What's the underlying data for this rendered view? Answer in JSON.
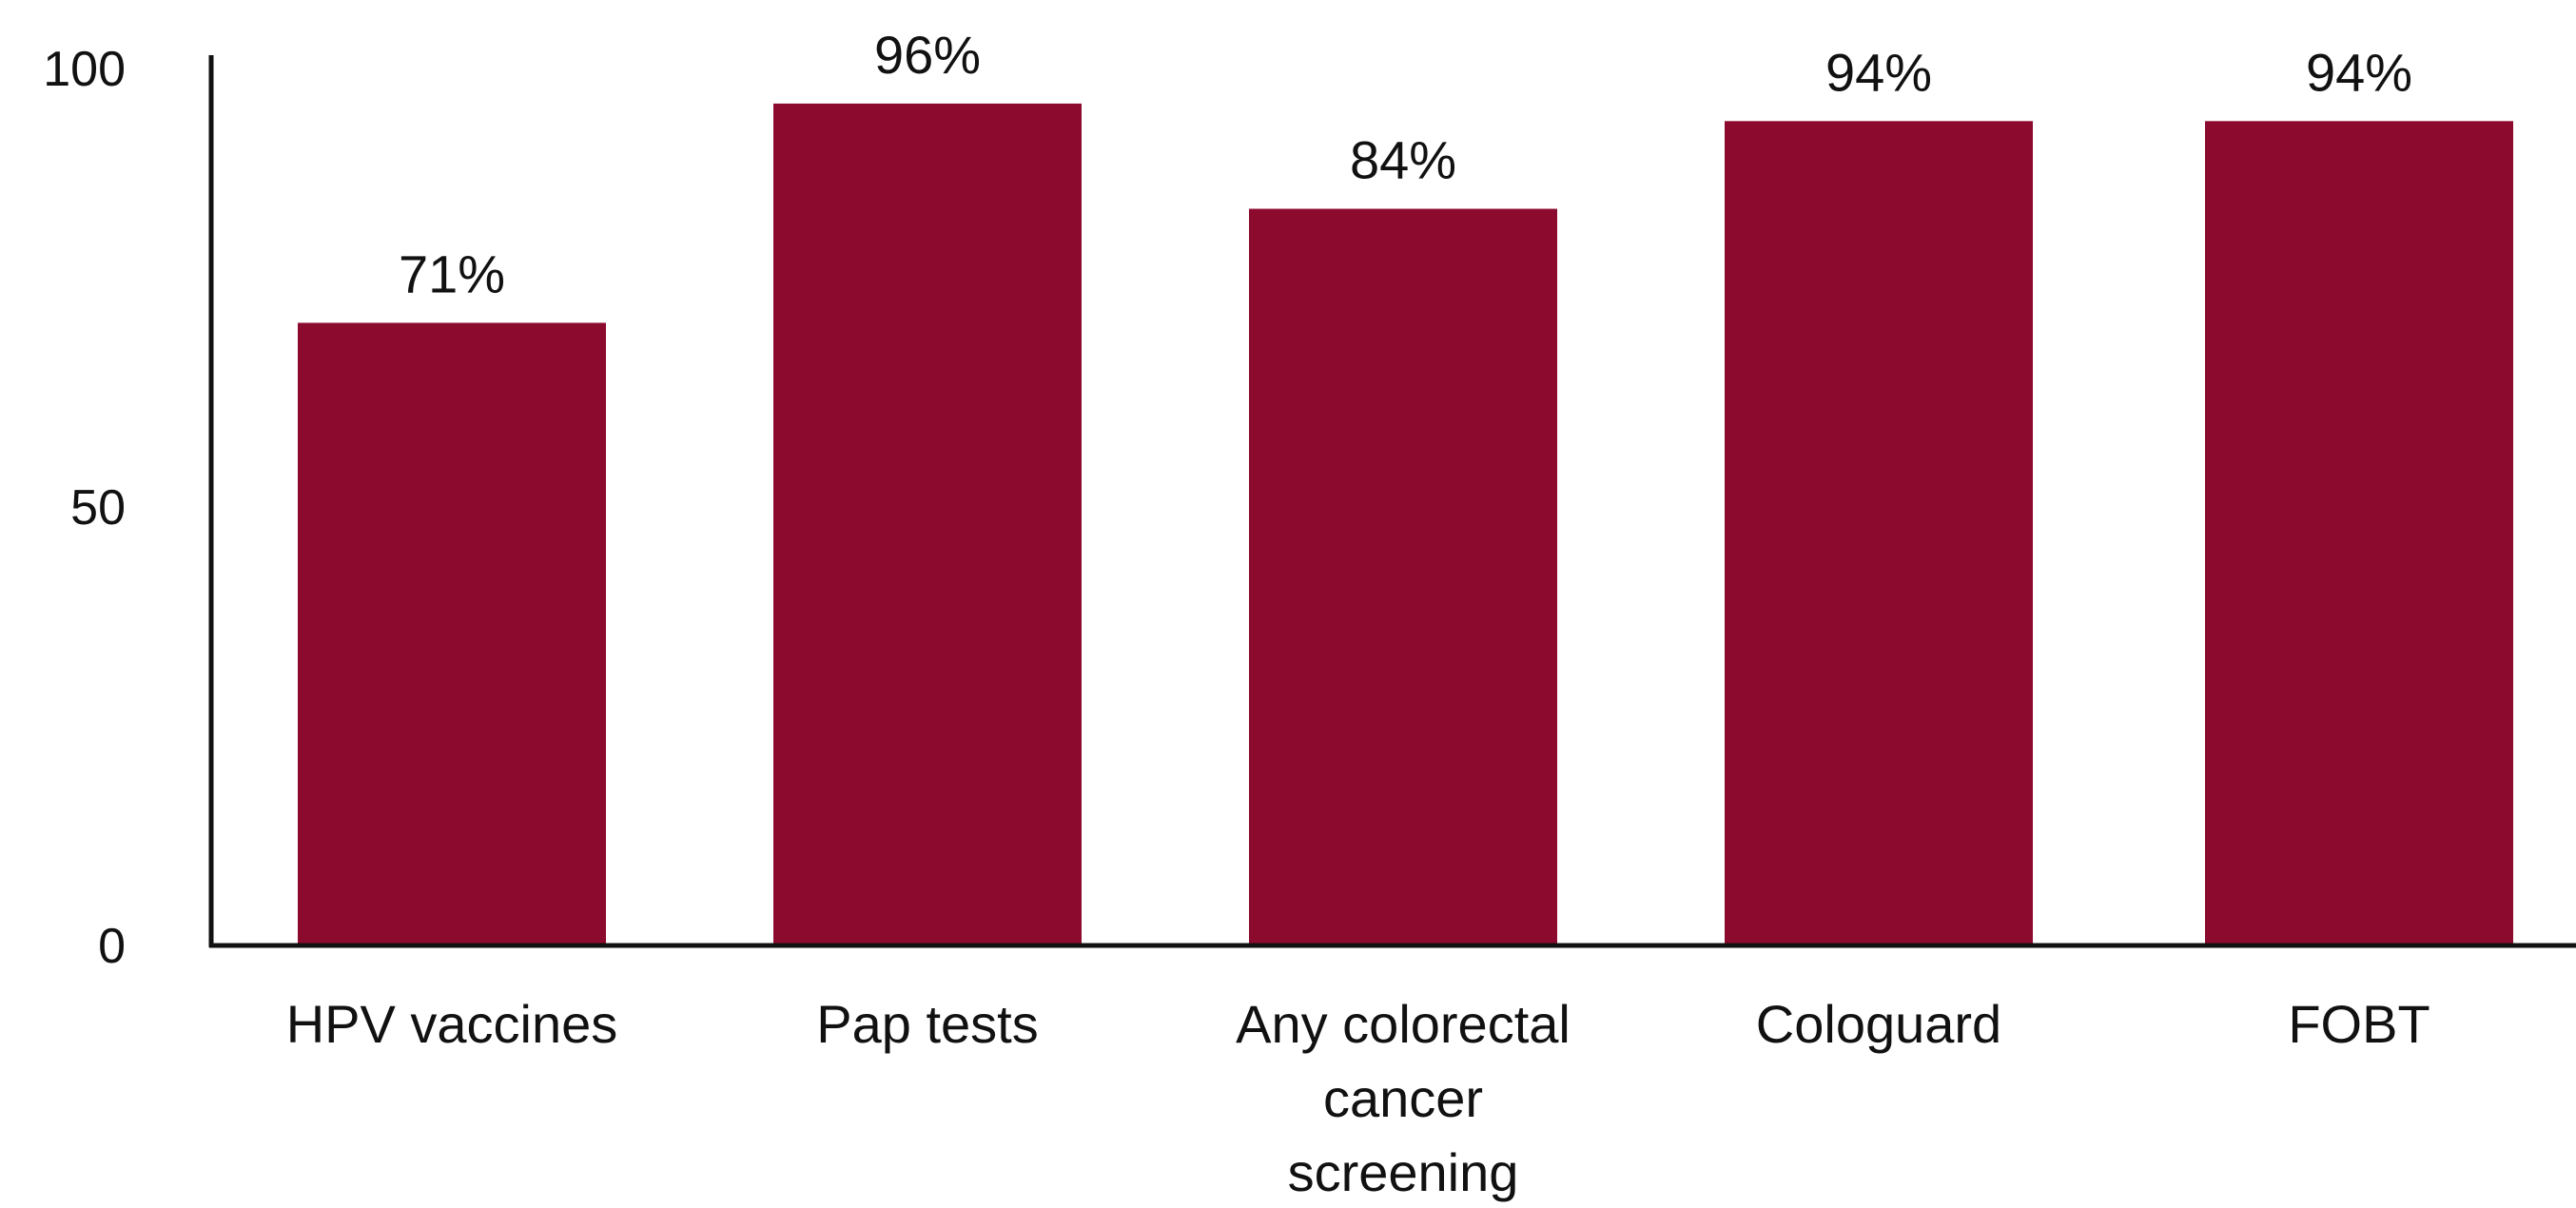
{
  "chart_data": {
    "type": "bar",
    "categories": [
      [
        "HPV vaccines"
      ],
      [
        "Pap tests"
      ],
      [
        "Any colorectal",
        "cancer",
        "screening"
      ],
      [
        "Cologuard"
      ],
      [
        "FOBT"
      ]
    ],
    "values": [
      71,
      96,
      84,
      94,
      94
    ],
    "data_labels": [
      "71%",
      "96%",
      "84%",
      "94%",
      "94%"
    ],
    "yticks": [
      0,
      50,
      100
    ],
    "ylim": [
      0,
      100
    ],
    "title": "",
    "xlabel": "",
    "ylabel": "",
    "grid": false,
    "legend": "none",
    "bar_color": "#8B0A2E",
    "axis_color": "#111111"
  }
}
